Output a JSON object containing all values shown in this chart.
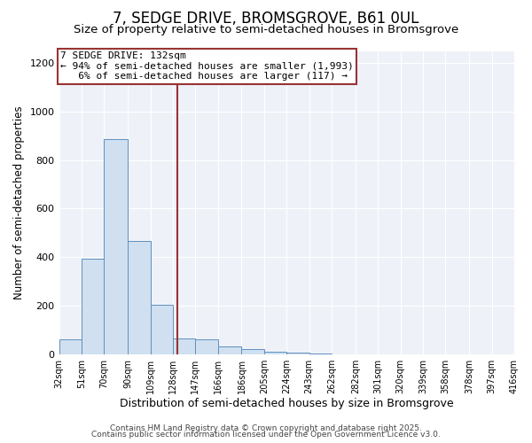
{
  "title": "7, SEDGE DRIVE, BROMSGROVE, B61 0UL",
  "subtitle": "Size of property relative to semi-detached houses in Bromsgrove",
  "xlabel": "Distribution of semi-detached houses by size in Bromsgrove",
  "ylabel": "Number of semi-detached properties",
  "bin_edges": [
    32,
    51,
    70,
    90,
    109,
    128,
    147,
    166,
    186,
    205,
    224,
    243,
    262,
    282,
    301,
    320,
    339,
    358,
    378,
    397,
    416
  ],
  "bin_labels": [
    "32sqm",
    "51sqm",
    "70sqm",
    "90sqm",
    "109sqm",
    "128sqm",
    "147sqm",
    "166sqm",
    "186sqm",
    "205sqm",
    "224sqm",
    "243sqm",
    "262sqm",
    "282sqm",
    "301sqm",
    "320sqm",
    "339sqm",
    "358sqm",
    "378sqm",
    "397sqm",
    "416sqm"
  ],
  "bar_heights": [
    60,
    395,
    885,
    465,
    205,
    65,
    60,
    30,
    20,
    10,
    7,
    3,
    0,
    0,
    0,
    0,
    0,
    0,
    0,
    0
  ],
  "bar_color": "#d0e0f0",
  "bar_edge_color": "#6090c0",
  "property_line_x": 132,
  "property_line_color": "#993333",
  "annotation_text": "7 SEDGE DRIVE: 132sqm\n← 94% of semi-detached houses are smaller (1,993)\n   6% of semi-detached houses are larger (117) →",
  "annotation_box_color": "#ffffff",
  "annotation_box_edge_color": "#993333",
  "ylim": [
    0,
    1250
  ],
  "yticks": [
    0,
    200,
    400,
    600,
    800,
    1000,
    1200
  ],
  "figure_bg": "#ffffff",
  "plot_bg_color": "#eef2f8",
  "grid_color": "#ffffff",
  "footer_line1": "Contains HM Land Registry data © Crown copyright and database right 2025.",
  "footer_line2": "Contains public sector information licensed under the Open Government Licence v3.0.",
  "title_fontsize": 12,
  "subtitle_fontsize": 9.5,
  "annotation_fontsize": 8,
  "footer_fontsize": 6.5,
  "ylabel_fontsize": 8.5,
  "xlabel_fontsize": 9
}
